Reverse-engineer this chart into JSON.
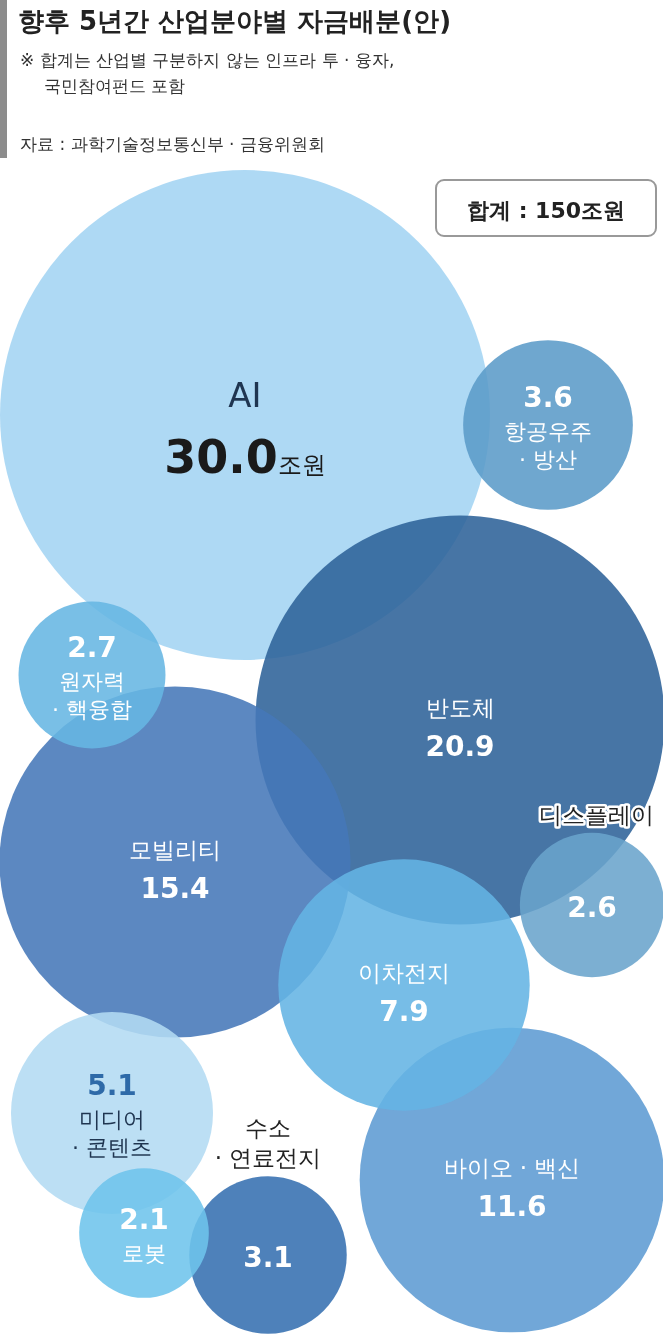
{
  "chart_data": {
    "type": "other",
    "title": "향후 5년간 산업분야별 자금배분(안)",
    "annotations": [
      "※ 합계는 산업별 구분하지 않는 인프라 투 · 융자, 국민참여펀드 포함",
      "자료 : 과학기술정보통신부 · 금융위원회",
      "합계 : 150조원"
    ],
    "categories": [
      "AI",
      "반도체",
      "모빌리티",
      "바이오 · 백신",
      "이차전지",
      "미디어 · 콘텐츠",
      "항공우주 · 방산",
      "수소 · 연료전지",
      "원자력 · 핵융합",
      "디스플레이",
      "로봇"
    ],
    "values": [
      30.0,
      20.9,
      15.4,
      11.6,
      7.9,
      5.1,
      3.6,
      3.1,
      2.7,
      2.6,
      2.1
    ],
    "value_labels": [
      "30.0조원",
      "20.9",
      "15.4",
      "11.6",
      "7.9",
      "5.1",
      "3.6",
      "3.1",
      "2.7",
      "2.6",
      "2.1"
    ],
    "colors": [
      "#a3d4f2",
      "#2e6298",
      "#4678b8",
      "#5d9bd3",
      "#64b4e4",
      "#b3dbf3",
      "#5b9bc8",
      "#3570b0",
      "#66b6e3",
      "#6aa4cc",
      "#6ec4ec"
    ]
  }
}
